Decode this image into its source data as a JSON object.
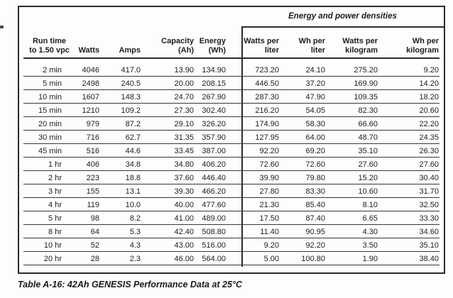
{
  "caption": "Table A-16: 42Ah GENESIS Performance Data at 25°C",
  "table": {
    "group_header": "Energy and power densities",
    "columns": [
      {
        "lines": [
          "Run time",
          "to 1.50 vpc"
        ]
      },
      {
        "lines": [
          "Watts"
        ]
      },
      {
        "lines": [
          "Amps"
        ]
      },
      {
        "lines": [
          "Capacity",
          "(Ah)"
        ]
      },
      {
        "lines": [
          "Energy",
          "(Wh)"
        ]
      },
      {
        "lines": [
          "Watts per",
          "liter"
        ]
      },
      {
        "lines": [
          "Wh per",
          "liter"
        ]
      },
      {
        "lines": [
          "Watts per",
          "kilogram"
        ]
      },
      {
        "lines": [
          "Wh per",
          "kilogram"
        ]
      }
    ],
    "rows": [
      [
        "2 min",
        "4046",
        "417.0",
        "13.90",
        "134.90",
        "723.20",
        "24.10",
        "275.20",
        "9.20"
      ],
      [
        "5 min",
        "2498",
        "240.5",
        "20.00",
        "208.15",
        "446.50",
        "37.20",
        "169.90",
        "14.20"
      ],
      [
        "10 min",
        "1607",
        "148.3",
        "24.70",
        "267.90",
        "287.30",
        "47.90",
        "109.35",
        "18.20"
      ],
      [
        "15 min",
        "1210",
        "109.2",
        "27.30",
        "302.40",
        "216.20",
        "54.05",
        "82.30",
        "20.60"
      ],
      [
        "20 min",
        "979",
        "87.2",
        "29.10",
        "326.20",
        "174.90",
        "58.30",
        "66.60",
        "22.20"
      ],
      [
        "30 min",
        "716",
        "62.7",
        "31.35",
        "357.90",
        "127.95",
        "64.00",
        "48.70",
        "24.35"
      ],
      [
        "45 min",
        "516",
        "44.6",
        "33.45",
        "387.00",
        "92.20",
        "69.20",
        "35.10",
        "26.30"
      ],
      [
        "1 hr",
        "406",
        "34.8",
        "34.80",
        "406.20",
        "72.60",
        "72.60",
        "27.60",
        "27.60"
      ],
      [
        "2 hr",
        "223",
        "18.8",
        "37.60",
        "446.40",
        "39.90",
        "79.80",
        "15.20",
        "30.40"
      ],
      [
        "3 hr",
        "155",
        "13.1",
        "39.30",
        "466.20",
        "27.80",
        "83.30",
        "10.60",
        "31.70"
      ],
      [
        "4 hr",
        "119",
        "10.0",
        "40.00",
        "477.60",
        "21.30",
        "85.40",
        "8.10",
        "32.50"
      ],
      [
        "5 hr",
        "98",
        "8.2",
        "41.00",
        "489.00",
        "17.50",
        "87.40",
        "6.65",
        "33.30"
      ],
      [
        "8 hr",
        "64",
        "5.3",
        "42.40",
        "508.80",
        "11.40",
        "90.95",
        "4.30",
        "34.60"
      ],
      [
        "10 hr",
        "52",
        "4.3",
        "43.00",
        "516.00",
        "9.20",
        "92.20",
        "3.50",
        "35.10"
      ],
      [
        "20 hr",
        "28",
        "2.3",
        "46.00",
        "564.00",
        "5.00",
        "100.80",
        "1.90",
        "38.40"
      ]
    ]
  },
  "colors": {
    "line": "#2b2b2b",
    "text": "#1d1d1d",
    "background": "#fdfdfd"
  }
}
